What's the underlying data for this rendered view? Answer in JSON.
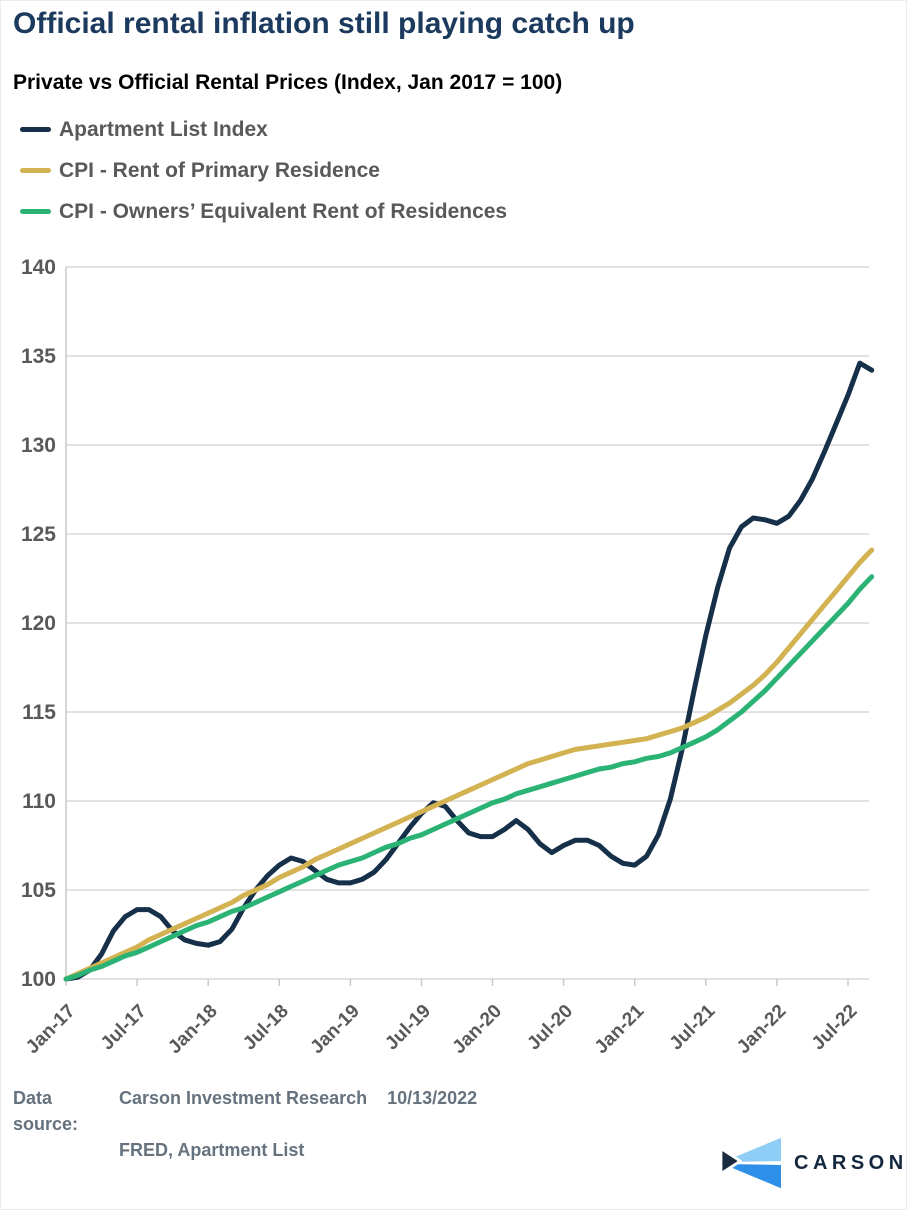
{
  "page": {
    "title": "Official rental inflation still playing catch up",
    "subtitle": "Private vs Official Rental Prices (Index, Jan 2017 = 100)"
  },
  "legend": {
    "items": [
      {
        "label": "Apartment List Index",
        "color": "#16304a"
      },
      {
        "label": "CPI - Rent of Primary Residence",
        "color": "#d3b252"
      },
      {
        "label": "CPI - Owners’ Equivalent Rent of Residences",
        "color": "#2bb375"
      }
    ]
  },
  "footer": {
    "source_label": "Data source:",
    "source_line1": "Carson Investment Research",
    "source_line2": "FRED, Apartment List",
    "date": "10/13/2022"
  },
  "logo": {
    "text": "CARSON",
    "colors": {
      "light": "#8ecdf5",
      "navy": "#1b2c40",
      "blue": "#2e8fe8"
    }
  },
  "chart_data": {
    "type": "line",
    "title": "Private vs Official Rental Prices (Index, Jan 2017 = 100)",
    "xlabel": "",
    "ylabel": "",
    "ylim": [
      100,
      140
    ],
    "yticks": [
      100,
      105,
      110,
      115,
      120,
      125,
      130,
      135,
      140
    ],
    "grid": "horizontal",
    "legend_position": "top-left",
    "colors": {
      "grid": "#d8d8d8",
      "axis_line": "#c6c6c6",
      "axis_text": "#595959"
    },
    "x_tick_labels": [
      "Jan-17",
      "Jul-17",
      "Jan-18",
      "Jul-18",
      "Jan-19",
      "Jul-19",
      "Jan-20",
      "Jul-20",
      "Jan-21",
      "Jul-21",
      "Jan-22",
      "Jul-22"
    ],
    "months": [
      "Jan-17",
      "Feb-17",
      "Mar-17",
      "Apr-17",
      "May-17",
      "Jun-17",
      "Jul-17",
      "Aug-17",
      "Sep-17",
      "Oct-17",
      "Nov-17",
      "Dec-17",
      "Jan-18",
      "Feb-18",
      "Mar-18",
      "Apr-18",
      "May-18",
      "Jun-18",
      "Jul-18",
      "Aug-18",
      "Sep-18",
      "Oct-18",
      "Nov-18",
      "Dec-18",
      "Jan-19",
      "Feb-19",
      "Mar-19",
      "Apr-19",
      "May-19",
      "Jun-19",
      "Jul-19",
      "Aug-19",
      "Sep-19",
      "Oct-19",
      "Nov-19",
      "Dec-19",
      "Jan-20",
      "Feb-20",
      "Mar-20",
      "Apr-20",
      "May-20",
      "Jun-20",
      "Jul-20",
      "Aug-20",
      "Sep-20",
      "Oct-20",
      "Nov-20",
      "Dec-20",
      "Jan-21",
      "Feb-21",
      "Mar-21",
      "Apr-21",
      "May-21",
      "Jun-21",
      "Jul-21",
      "Aug-21",
      "Sep-21",
      "Oct-21",
      "Nov-21",
      "Dec-21",
      "Jan-22",
      "Feb-22",
      "Mar-22",
      "Apr-22",
      "May-22",
      "Jun-22",
      "Jul-22",
      "Aug-22",
      "Sep-22"
    ],
    "series": [
      {
        "id": "apartment-list-index",
        "name": "Apartment List Index",
        "color": "#16304a",
        "values": [
          100,
          100.1,
          100.5,
          101.4,
          102.7,
          103.5,
          103.9,
          103.9,
          103.5,
          102.7,
          102.2,
          102,
          101.9,
          102.1,
          102.8,
          104,
          105,
          105.8,
          106.4,
          106.8,
          106.6,
          106.1,
          105.6,
          105.4,
          105.4,
          105.6,
          106,
          106.7,
          107.6,
          108.5,
          109.3,
          109.9,
          109.7,
          108.9,
          108.2,
          108,
          108,
          108.4,
          108.9,
          108.4,
          107.6,
          107.1,
          107.5,
          107.8,
          107.8,
          107.5,
          106.9,
          106.5,
          106.4,
          106.9,
          108.1,
          110.1,
          112.9,
          116.2,
          119.3,
          122,
          124.2,
          125.4,
          125.9,
          125.8,
          125.6,
          126,
          126.9,
          128.1,
          129.6,
          131.2,
          132.8,
          134.6,
          134.2
        ]
      },
      {
        "id": "cpi-rent-primary-residence",
        "name": "CPI - Rent of Primary Residence",
        "color": "#d3b252",
        "values": [
          100,
          100.3,
          100.6,
          100.9,
          101.2,
          101.5,
          101.8,
          102.2,
          102.5,
          102.8,
          103.1,
          103.4,
          103.7,
          104,
          104.3,
          104.7,
          105,
          105.3,
          105.7,
          106,
          106.3,
          106.7,
          107,
          107.3,
          107.6,
          107.9,
          108.2,
          108.5,
          108.8,
          109.1,
          109.4,
          109.7,
          110,
          110.3,
          110.6,
          110.9,
          111.2,
          111.5,
          111.8,
          112.1,
          112.3,
          112.5,
          112.7,
          112.9,
          113,
          113.1,
          113.2,
          113.3,
          113.4,
          113.5,
          113.7,
          113.9,
          114.1,
          114.4,
          114.7,
          115.1,
          115.5,
          116,
          116.5,
          117.1,
          117.8,
          118.6,
          119.4,
          120.2,
          121,
          121.8,
          122.6,
          123.4,
          124.1
        ]
      },
      {
        "id": "cpi-owners-equivalent-rent",
        "name": "CPI - Owners' Equivalent Rent of Residences",
        "color": "#2bb375",
        "values": [
          100,
          100.2,
          100.5,
          100.7,
          101,
          101.3,
          101.5,
          101.8,
          102.1,
          102.4,
          102.7,
          103,
          103.2,
          103.5,
          103.8,
          104,
          104.3,
          104.6,
          104.9,
          105.2,
          105.5,
          105.8,
          106.1,
          106.4,
          106.6,
          106.8,
          107.1,
          107.4,
          107.6,
          107.9,
          108.1,
          108.4,
          108.7,
          109,
          109.3,
          109.6,
          109.9,
          110.1,
          110.4,
          110.6,
          110.8,
          111,
          111.2,
          111.4,
          111.6,
          111.8,
          111.9,
          112.1,
          112.2,
          112.4,
          112.5,
          112.7,
          113,
          113.3,
          113.6,
          114,
          114.5,
          115,
          115.6,
          116.2,
          116.9,
          117.6,
          118.3,
          119,
          119.7,
          120.4,
          121.1,
          121.9,
          122.6
        ]
      }
    ]
  }
}
